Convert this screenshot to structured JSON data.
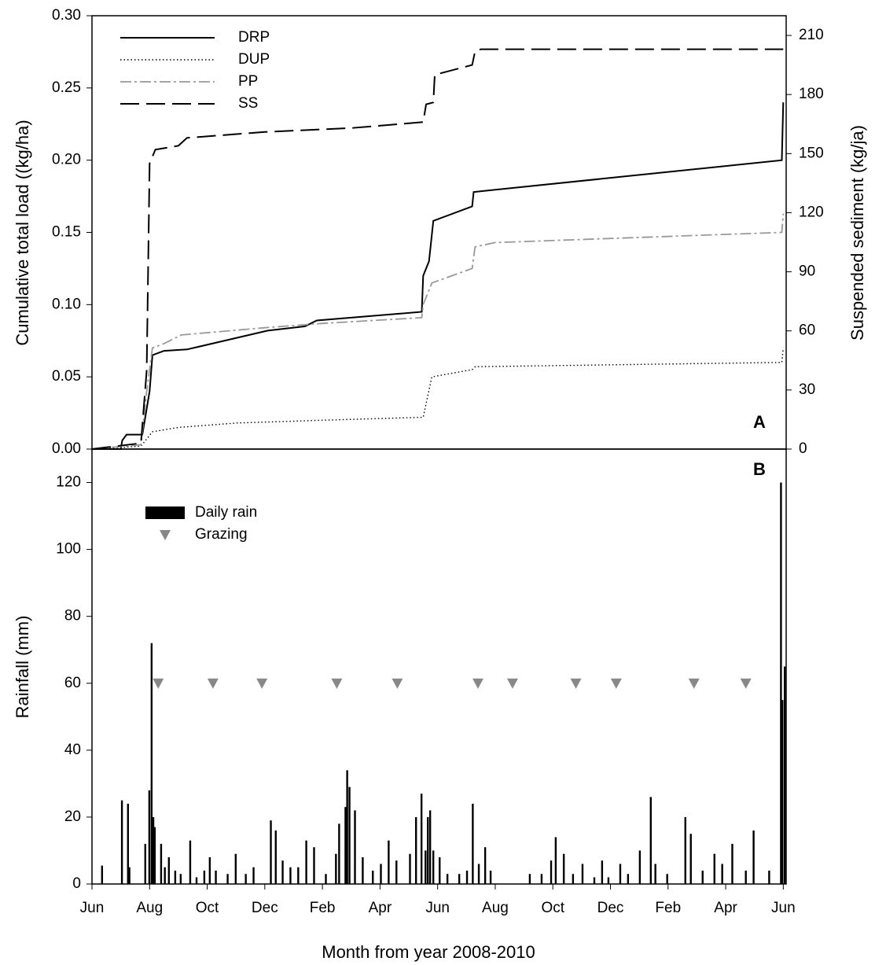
{
  "chart_data": [
    {
      "type": "line",
      "ylabel": "Cumulative total load ((kg/ha)",
      "y2label": "Suspended sediment (kg/ja)",
      "panel_label": "A",
      "xlim": [
        0,
        24.1
      ],
      "ylim": [
        0,
        0.3
      ],
      "yticks": [
        {
          "value": 0,
          "label": "0.00"
        },
        {
          "value": 0.05,
          "label": "0.05"
        },
        {
          "value": 0.1,
          "label": "0.10"
        },
        {
          "value": 0.15,
          "label": "0.15"
        },
        {
          "value": 0.2,
          "label": "0.20"
        },
        {
          "value": 0.25,
          "label": "0.25"
        },
        {
          "value": 0.3,
          "label": "0.30"
        }
      ],
      "y2lim": [
        0,
        220
      ],
      "y2ticks": [
        0,
        30,
        60,
        90,
        120,
        150,
        180,
        210
      ],
      "series": [
        {
          "name": "DRP",
          "color": "#000000",
          "dash": "solid",
          "x": [
            0,
            1.0,
            1.05,
            1.2,
            1.75,
            2.0,
            2.1,
            2.5,
            3.3,
            6.1,
            7.4,
            7.8,
            11.45,
            11.5,
            11.7,
            11.85,
            13.2,
            13.25,
            23.95,
            24.0
          ],
          "values": [
            0,
            0,
            0.006,
            0.01,
            0.01,
            0.04,
            0.065,
            0.068,
            0.069,
            0.082,
            0.085,
            0.089,
            0.095,
            0.12,
            0.13,
            0.158,
            0.168,
            0.178,
            0.2,
            0.24
          ]
        },
        {
          "name": "DUP",
          "color": "#000000",
          "dash": "dotted",
          "x": [
            0,
            1.7,
            2.1,
            3.0,
            5.0,
            8.0,
            11.5,
            11.8,
            13.2,
            13.3,
            23.95,
            24.0
          ],
          "values": [
            0,
            0.002,
            0.012,
            0.015,
            0.018,
            0.02,
            0.022,
            0.05,
            0.055,
            0.057,
            0.06,
            0.07
          ]
        },
        {
          "name": "PP",
          "color": "#999999",
          "dash": "dashdot",
          "x": [
            0,
            1.7,
            1.9,
            2.1,
            2.5,
            3.1,
            6.0,
            8.0,
            11.45,
            11.5,
            11.8,
            13.2,
            13.3,
            14.0,
            23.95,
            24.0
          ],
          "values": [
            0,
            0.003,
            0.04,
            0.07,
            0.073,
            0.079,
            0.084,
            0.087,
            0.091,
            0.1,
            0.115,
            0.125,
            0.14,
            0.143,
            0.15,
            0.163
          ]
        },
        {
          "name": "SS",
          "color": "#000000",
          "dash": "dashed",
          "axis": "y2",
          "x": [
            0,
            1.7,
            1.9,
            2.0,
            2.2,
            3.0,
            3.3,
            6.0,
            9.0,
            11.5,
            11.6,
            11.85,
            11.9,
            13.2,
            13.3,
            13.5,
            24.0
          ],
          "values": [
            0,
            3,
            40,
            145,
            152,
            154,
            158,
            161,
            163,
            166,
            175,
            176,
            190,
            195,
            202,
            203,
            203
          ]
        }
      ]
    },
    {
      "type": "bar",
      "ylabel": "Rainfall (mm)",
      "xlabel": "Month from year 2008-2010",
      "panel_label": "B",
      "xlim": [
        0,
        24.1
      ],
      "xticks": [
        {
          "value": 0,
          "label": "Jun"
        },
        {
          "value": 2,
          "label": "Aug"
        },
        {
          "value": 4,
          "label": "Oct"
        },
        {
          "value": 6,
          "label": "Dec"
        },
        {
          "value": 8,
          "label": "Feb"
        },
        {
          "value": 10,
          "label": "Apr"
        },
        {
          "value": 12,
          "label": "Jun"
        },
        {
          "value": 14,
          "label": "Aug"
        },
        {
          "value": 16,
          "label": "Oct"
        },
        {
          "value": 18,
          "label": "Dec"
        },
        {
          "value": 20,
          "label": "Feb"
        },
        {
          "value": 22,
          "label": "Apr"
        },
        {
          "value": 24,
          "label": "Jun"
        }
      ],
      "ylim": [
        0,
        130
      ],
      "yticks": [
        0,
        20,
        40,
        60,
        80,
        100,
        120
      ],
      "series": [
        {
          "name": "Daily rain",
          "type": "bar",
          "color": "#000000",
          "x": [
            0.35,
            1.04,
            1.25,
            1.3,
            1.85,
            1.99,
            2.07,
            2.13,
            2.18,
            2.4,
            2.53,
            2.67,
            2.89,
            3.08,
            3.41,
            3.63,
            3.9,
            4.09,
            4.3,
            4.71,
            4.99,
            5.34,
            5.61,
            6.21,
            6.38,
            6.62,
            6.89,
            7.16,
            7.44,
            7.71,
            8.12,
            8.47,
            8.58,
            8.8,
            8.86,
            8.94,
            9.13,
            9.4,
            9.75,
            10.03,
            10.3,
            10.57,
            11.04,
            11.25,
            11.44,
            11.58,
            11.66,
            11.74,
            11.85,
            12.07,
            12.34,
            12.75,
            13.02,
            13.22,
            13.43,
            13.65,
            13.84,
            15.2,
            15.61,
            15.94,
            16.1,
            16.38,
            16.7,
            17.03,
            17.44,
            17.71,
            17.93,
            18.34,
            18.61,
            19.02,
            19.4,
            19.56,
            19.97,
            20.6,
            20.79,
            21.2,
            21.61,
            21.88,
            22.23,
            22.7,
            22.97,
            23.51,
            23.92,
            23.97,
            24.05
          ],
          "values": [
            5.5,
            25,
            24,
            5,
            12,
            28,
            72,
            20,
            17,
            12,
            5,
            8,
            4,
            3,
            13,
            2,
            4,
            8,
            4,
            3,
            9,
            3,
            5,
            19,
            16,
            7,
            5,
            5,
            13,
            11,
            3,
            9,
            18,
            23,
            34,
            29,
            22,
            8,
            4,
            6,
            13,
            7,
            9,
            20,
            27,
            10,
            20,
            22,
            10,
            8,
            3,
            3,
            4,
            24,
            6,
            11,
            4,
            3,
            3,
            7,
            14,
            9,
            3,
            6,
            2,
            7,
            2,
            6,
            3,
            10,
            26,
            6,
            3,
            20,
            15,
            4,
            9,
            6,
            12,
            4,
            16,
            4,
            120,
            55,
            65
          ]
        },
        {
          "name": "Grazing",
          "type": "scatter",
          "color": "#888888",
          "x": [
            2.3,
            4.2,
            5.9,
            8.5,
            10.6,
            13.4,
            14.6,
            16.8,
            18.2,
            20.9,
            22.7
          ],
          "values": [
            60,
            60,
            60,
            60,
            60,
            60,
            60,
            60,
            60,
            60,
            60
          ]
        }
      ]
    }
  ]
}
